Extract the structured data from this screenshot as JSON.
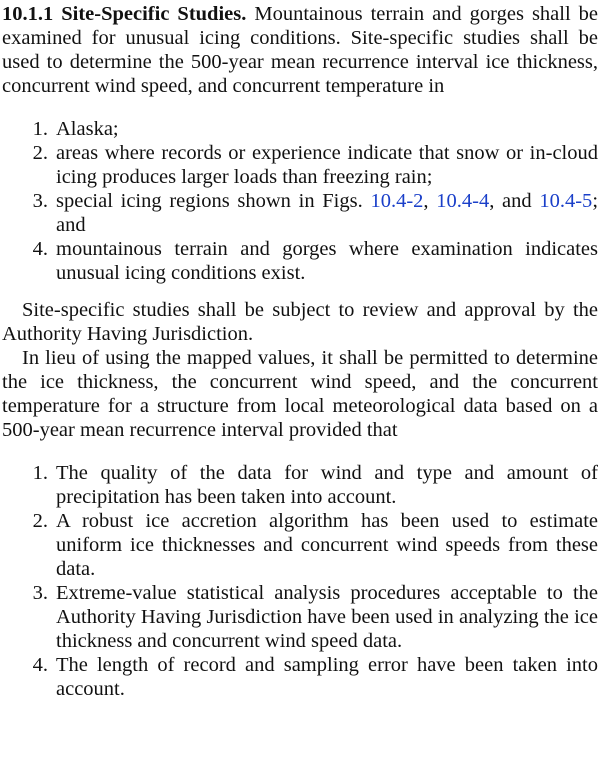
{
  "section": {
    "heading": "10.1.1 Site-Specific Studies.",
    "intro": "Mountainous terrain and gorges shall be examined for unusual icing conditions. Site-specific studies shall be used to determine the 500-year mean recurrence interval ice thickness, concurrent wind speed, and concurrent temperature in"
  },
  "list1": [
    {
      "num": "1.",
      "text": "Alaska;"
    },
    {
      "num": "2.",
      "text": "areas where records or experience indicate that snow or in-cloud icing produces larger loads than freezing rain;"
    },
    {
      "num": "3.",
      "text_before": "special icing regions shown in Figs.",
      "link1": "10.4-2",
      "sep1": ",",
      "link2": "10.4-4",
      "sep2": ", and",
      "link3": "10.4-5",
      "text_after": "; and"
    },
    {
      "num": "4.",
      "text": "mountainous terrain and gorges where examination indicates unusual icing conditions exist."
    }
  ],
  "para2": "Site-specific studies shall be subject to review and approval by the Authority Having Jurisdiction.",
  "para3": "In lieu of using the mapped values, it shall be permitted to determine the ice thickness, the concurrent wind speed, and the concurrent temperature for a structure from local meteorological data based on a 500-year mean recurrence interval provided that",
  "list2": [
    {
      "num": "1.",
      "text": "The quality of the data for wind and type and amount of precipitation has been taken into account."
    },
    {
      "num": "2.",
      "text": "A robust ice accretion algorithm has been used to estimate uniform ice thicknesses and concurrent wind speeds from these data."
    },
    {
      "num": "3.",
      "text": "Extreme-value statistical analysis procedures acceptable to the Authority Having Jurisdiction have been used in analyzing the ice thickness and concurrent wind speed data."
    },
    {
      "num": "4.",
      "text": "The length of record and sampling error have been taken into account."
    }
  ],
  "colors": {
    "text": "#111111",
    "link": "#1a3fc9",
    "background": "#ffffff"
  }
}
